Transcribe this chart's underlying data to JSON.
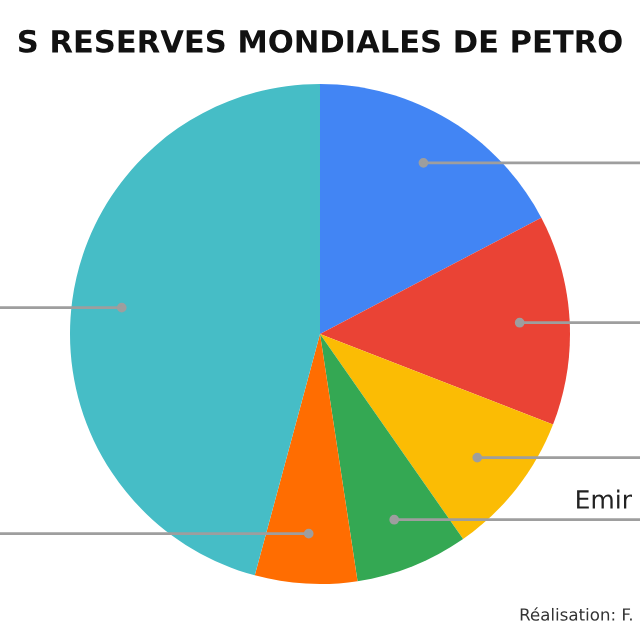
{
  "chart_data": {
    "type": "pie",
    "title": "S RESERVES MONDIALES DE PETRO",
    "categories": [
      null,
      null,
      null,
      "Emir",
      null,
      null
    ],
    "values": [
      17.3,
      13.6,
      9.4,
      7.3,
      6.6,
      45.8
    ],
    "colors": [
      "#4285f4",
      "#ea4335",
      "#fbbc04",
      "#34a853",
      "#ff6d01",
      "#46bdc6"
    ],
    "annotations": [
      "Réalisation: F."
    ]
  }
}
